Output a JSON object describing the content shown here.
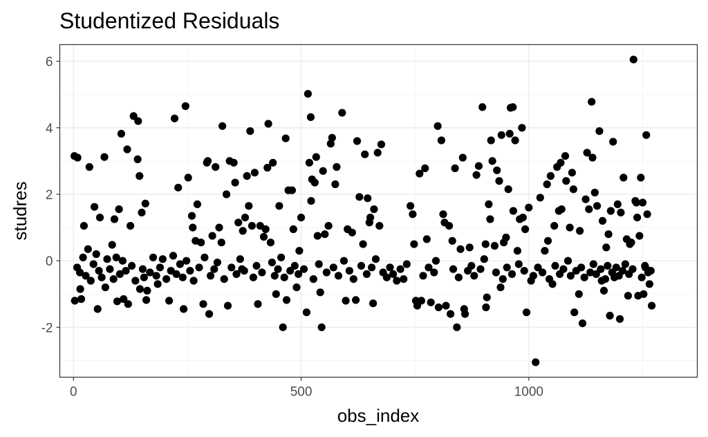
{
  "chart_data": {
    "type": "scatter",
    "title": "Studentized Residuals",
    "xlabel": "obs_index",
    "ylabel": "studres",
    "xlim": [
      -30,
      1370
    ],
    "ylim": [
      -3.5,
      6.5
    ],
    "xticks": [
      0,
      500,
      1000
    ],
    "xtick_labels": [
      "0",
      "500",
      "1000"
    ],
    "yticks": [
      -2,
      0,
      2,
      4,
      6
    ],
    "ytick_labels": [
      "-2",
      "0",
      "2",
      "4",
      "6"
    ],
    "grid": true,
    "point_color": "#000000",
    "background": "#ffffff",
    "points": [
      [
        2,
        3.15
      ],
      [
        9,
        3.1
      ],
      [
        3,
        -1.2
      ],
      [
        17,
        -1.15
      ],
      [
        15,
        -0.85
      ],
      [
        23,
        1.05
      ],
      [
        35,
        2.82
      ],
      [
        46,
        1.62
      ],
      [
        53,
        -1.45
      ],
      [
        58,
        1.3
      ],
      [
        68,
        3.12
      ],
      [
        70,
        -0.8
      ],
      [
        85,
        0.48
      ],
      [
        90,
        1.25
      ],
      [
        96,
        -1.22
      ],
      [
        100,
        1.55
      ],
      [
        105,
        3.82
      ],
      [
        110,
        -1.15
      ],
      [
        118,
        3.35
      ],
      [
        120,
        -1.3
      ],
      [
        125,
        1.05
      ],
      [
        132,
        4.35
      ],
      [
        142,
        4.2
      ],
      [
        141,
        3.05
      ],
      [
        145,
        2.55
      ],
      [
        146,
        -0.85
      ],
      [
        150,
        1.45
      ],
      [
        155,
        -0.5
      ],
      [
        158,
        1.72
      ],
      [
        160,
        -1.18
      ],
      [
        162,
        -0.9
      ],
      [
        185,
        -0.7
      ],
      [
        210,
        -1.2
      ],
      [
        222,
        4.28
      ],
      [
        230,
        2.2
      ],
      [
        242,
        -1.45
      ],
      [
        246,
        4.65
      ],
      [
        252,
        2.5
      ],
      [
        260,
        1.35
      ],
      [
        262,
        1.0
      ],
      [
        268,
        0.6
      ],
      [
        272,
        1.7
      ],
      [
        280,
        0.55
      ],
      [
        285,
        -1.3
      ],
      [
        293,
        2.95
      ],
      [
        295,
        3.0
      ],
      [
        298,
        -1.6
      ],
      [
        305,
        0.75
      ],
      [
        312,
        2.82
      ],
      [
        320,
        1.0
      ],
      [
        325,
        0.55
      ],
      [
        327,
        4.05
      ],
      [
        336,
        2.0
      ],
      [
        339,
        -1.35
      ],
      [
        343,
        3.0
      ],
      [
        352,
        2.95
      ],
      [
        355,
        2.35
      ],
      [
        362,
        1.15
      ],
      [
        370,
        -0.25
      ],
      [
        372,
        0.9
      ],
      [
        377,
        1.3
      ],
      [
        381,
        2.55
      ],
      [
        385,
        1.65
      ],
      [
        388,
        3.9
      ],
      [
        392,
        1.05
      ],
      [
        398,
        2.65
      ],
      [
        405,
        -1.3
      ],
      [
        410,
        1.05
      ],
      [
        418,
        0.72
      ],
      [
        422,
        0.95
      ],
      [
        426,
        2.8
      ],
      [
        428,
        4.12
      ],
      [
        433,
        0.55
      ],
      [
        438,
        2.95
      ],
      [
        445,
        -1.0
      ],
      [
        452,
        1.65
      ],
      [
        460,
        -2.0
      ],
      [
        466,
        3.68
      ],
      [
        468,
        -1.18
      ],
      [
        472,
        2.12
      ],
      [
        480,
        2.12
      ],
      [
        483,
        0.95
      ],
      [
        490,
        -0.8
      ],
      [
        496,
        0.3
      ],
      [
        500,
        1.3
      ],
      [
        512,
        -1.55
      ],
      [
        515,
        5.02
      ],
      [
        518,
        2.95
      ],
      [
        521,
        4.32
      ],
      [
        524,
        2.45
      ],
      [
        522,
        1.8
      ],
      [
        530,
        2.35
      ],
      [
        533,
        3.12
      ],
      [
        536,
        0.75
      ],
      [
        542,
        -0.95
      ],
      [
        545,
        -2.0
      ],
      [
        548,
        2.7
      ],
      [
        552,
        0.8
      ],
      [
        560,
        1.05
      ],
      [
        565,
        3.52
      ],
      [
        568,
        3.7
      ],
      [
        575,
        2.3
      ],
      [
        578,
        2.82
      ],
      [
        590,
        4.45
      ],
      [
        598,
        -1.2
      ],
      [
        602,
        0.95
      ],
      [
        612,
        0.85
      ],
      [
        620,
        -1.18
      ],
      [
        623,
        3.6
      ],
      [
        628,
        1.92
      ],
      [
        636,
        0.5
      ],
      [
        640,
        3.2
      ],
      [
        646,
        1.88
      ],
      [
        650,
        1.15
      ],
      [
        652,
        1.3
      ],
      [
        658,
        -1.28
      ],
      [
        660,
        1.55
      ],
      [
        668,
        3.25
      ],
      [
        672,
        1.05
      ],
      [
        676,
        3.5
      ],
      [
        710,
        -0.6
      ],
      [
        740,
        1.65
      ],
      [
        745,
        1.4
      ],
      [
        748,
        0.5
      ],
      [
        752,
        -1.2
      ],
      [
        755,
        -1.35
      ],
      [
        760,
        2.62
      ],
      [
        764,
        -1.2
      ],
      [
        772,
        2.78
      ],
      [
        776,
        0.65
      ],
      [
        785,
        -1.25
      ],
      [
        800,
        4.05
      ],
      [
        802,
        -1.4
      ],
      [
        808,
        3.62
      ],
      [
        812,
        1.4
      ],
      [
        815,
        1.15
      ],
      [
        818,
        -1.35
      ],
      [
        825,
        1.05
      ],
      [
        828,
        -1.6
      ],
      [
        832,
        0.6
      ],
      [
        838,
        2.78
      ],
      [
        842,
        -2.0
      ],
      [
        850,
        0.35
      ],
      [
        855,
        3.1
      ],
      [
        858,
        -1.45
      ],
      [
        860,
        -1.6
      ],
      [
        870,
        0.4
      ],
      [
        885,
        2.58
      ],
      [
        890,
        2.85
      ],
      [
        898,
        4.62
      ],
      [
        905,
        0.5
      ],
      [
        906,
        -1.4
      ],
      [
        908,
        -1.1
      ],
      [
        912,
        1.7
      ],
      [
        915,
        1.25
      ],
      [
        917,
        3.62
      ],
      [
        920,
        3.0
      ],
      [
        925,
        0.45
      ],
      [
        930,
        2.72
      ],
      [
        935,
        2.4
      ],
      [
        938,
        -0.8
      ],
      [
        940,
        3.78
      ],
      [
        945,
        0.55
      ],
      [
        950,
        0.7
      ],
      [
        955,
        2.15
      ],
      [
        958,
        3.82
      ],
      [
        960,
        4.6
      ],
      [
        965,
        4.62
      ],
      [
        966,
        1.5
      ],
      [
        970,
        3.62
      ],
      [
        975,
        0.3
      ],
      [
        980,
        1.25
      ],
      [
        985,
        4.0
      ],
      [
        987,
        1.3
      ],
      [
        992,
        0.95
      ],
      [
        995,
        -1.55
      ],
      [
        1000,
        1.6
      ],
      [
        1005,
        -0.6
      ],
      [
        1015,
        -3.05
      ],
      [
        1025,
        1.9
      ],
      [
        1035,
        0.3
      ],
      [
        1040,
        2.3
      ],
      [
        1042,
        0.6
      ],
      [
        1048,
        2.55
      ],
      [
        1052,
        -0.7
      ],
      [
        1056,
        1.05
      ],
      [
        1062,
        2.82
      ],
      [
        1066,
        1.5
      ],
      [
        1070,
        2.95
      ],
      [
        1072,
        1.55
      ],
      [
        1080,
        3.15
      ],
      [
        1082,
        2.4
      ],
      [
        1090,
        1.0
      ],
      [
        1095,
        2.65
      ],
      [
        1098,
        2.15
      ],
      [
        1100,
        -1.55
      ],
      [
        1110,
        -1.0
      ],
      [
        1112,
        0.9
      ],
      [
        1118,
        -1.88
      ],
      [
        1125,
        1.85
      ],
      [
        1128,
        3.25
      ],
      [
        1132,
        1.55
      ],
      [
        1138,
        4.78
      ],
      [
        1140,
        3.1
      ],
      [
        1145,
        2.05
      ],
      [
        1150,
        1.65
      ],
      [
        1155,
        3.9
      ],
      [
        1160,
        -0.6
      ],
      [
        1162,
        1.2
      ],
      [
        1165,
        -0.9
      ],
      [
        1170,
        0.4
      ],
      [
        1175,
        0.8
      ],
      [
        1178,
        -1.65
      ],
      [
        1180,
        1.5
      ],
      [
        1185,
        3.58
      ],
      [
        1188,
        -0.5
      ],
      [
        1195,
        1.7
      ],
      [
        1200,
        -1.75
      ],
      [
        1202,
        1.45
      ],
      [
        1208,
        2.5
      ],
      [
        1215,
        0.65
      ],
      [
        1218,
        -1.05
      ],
      [
        1222,
        0.5
      ],
      [
        1225,
        0.55
      ],
      [
        1230,
        6.05
      ],
      [
        1234,
        1.8
      ],
      [
        1236,
        1.75
      ],
      [
        1238,
        1.3
      ],
      [
        1240,
        -1.05
      ],
      [
        1243,
        0.75
      ],
      [
        1246,
        2.5
      ],
      [
        1250,
        1.75
      ],
      [
        1252,
        -1.0
      ],
      [
        1258,
        3.78
      ],
      [
        1260,
        1.4
      ],
      [
        1265,
        -0.7
      ],
      [
        1270,
        -1.35
      ],
      [
        1268,
        -0.3
      ],
      [
        1262,
        -0.35
      ],
      [
        1255,
        -0.15
      ],
      [
        8,
        -0.2
      ],
      [
        14,
        -0.35
      ],
      [
        21,
        0.1
      ],
      [
        27,
        -0.45
      ],
      [
        32,
        0.35
      ],
      [
        38,
        -0.6
      ],
      [
        44,
        -0.1
      ],
      [
        50,
        0.2
      ],
      [
        56,
        -0.3
      ],
      [
        62,
        -0.5
      ],
      [
        74,
        0.05
      ],
      [
        80,
        -0.25
      ],
      [
        88,
        -0.55
      ],
      [
        94,
        0.1
      ],
      [
        102,
        -0.4
      ],
      [
        108,
        0.0
      ],
      [
        115,
        -0.3
      ],
      [
        128,
        -0.15
      ],
      [
        136,
        -0.6
      ],
      [
        152,
        -0.25
      ],
      [
        168,
        -0.35
      ],
      [
        175,
        0.1
      ],
      [
        182,
        -0.45
      ],
      [
        190,
        -0.2
      ],
      [
        196,
        0.05
      ],
      [
        204,
        -0.55
      ],
      [
        214,
        -0.3
      ],
      [
        219,
        0.15
      ],
      [
        226,
        -0.4
      ],
      [
        234,
        -0.1
      ],
      [
        240,
        -0.5
      ],
      [
        248,
        0.0
      ],
      [
        256,
        -0.3
      ],
      [
        264,
        -0.6
      ],
      [
        276,
        -0.2
      ],
      [
        288,
        0.1
      ],
      [
        301,
        -0.45
      ],
      [
        309,
        -0.25
      ],
      [
        316,
        -0.05
      ],
      [
        331,
        -0.55
      ],
      [
        347,
        -0.2
      ],
      [
        358,
        -0.4
      ],
      [
        366,
        0.05
      ],
      [
        375,
        -0.3
      ],
      [
        395,
        -0.5
      ],
      [
        402,
        -0.15
      ],
      [
        414,
        -0.35
      ],
      [
        436,
        -0.05
      ],
      [
        442,
        -0.45
      ],
      [
        449,
        -0.25
      ],
      [
        456,
        0.1
      ],
      [
        463,
        -0.5
      ],
      [
        476,
        -0.3
      ],
      [
        486,
        -0.15
      ],
      [
        494,
        -0.4
      ],
      [
        506,
        -0.25
      ],
      [
        527,
        -0.55
      ],
      [
        539,
        -0.1
      ],
      [
        556,
        -0.35
      ],
      [
        571,
        -0.2
      ],
      [
        582,
        -0.45
      ],
      [
        594,
        0.0
      ],
      [
        606,
        -0.3
      ],
      [
        615,
        -0.55
      ],
      [
        632,
        -0.15
      ],
      [
        644,
        -0.4
      ],
      [
        655,
        -0.2
      ],
      [
        664,
        0.05
      ],
      [
        680,
        -0.35
      ],
      [
        688,
        -0.5
      ],
      [
        695,
        -0.2
      ],
      [
        702,
        -0.4
      ],
      [
        718,
        -0.25
      ],
      [
        725,
        -0.55
      ],
      [
        732,
        -0.1
      ],
      [
        768,
        -0.45
      ],
      [
        780,
        -0.2
      ],
      [
        792,
        -0.35
      ],
      [
        796,
        0.0
      ],
      [
        834,
        -0.25
      ],
      [
        846,
        -0.5
      ],
      [
        866,
        -0.3
      ],
      [
        874,
        -0.15
      ],
      [
        880,
        -0.45
      ],
      [
        894,
        -0.25
      ],
      [
        902,
        0.05
      ],
      [
        928,
        -0.35
      ],
      [
        943,
        -0.55
      ],
      [
        952,
        -0.2
      ],
      [
        963,
        -0.4
      ],
      [
        978,
        -0.1
      ],
      [
        990,
        -0.3
      ],
      [
        1010,
        -0.45
      ],
      [
        1020,
        -0.2
      ],
      [
        1030,
        -0.35
      ],
      [
        1045,
        -0.55
      ],
      [
        1058,
        -0.15
      ],
      [
        1068,
        -0.4
      ],
      [
        1076,
        -0.25
      ],
      [
        1086,
        0.0
      ],
      [
        1092,
        -0.45
      ],
      [
        1104,
        -0.3
      ],
      [
        1115,
        -0.2
      ],
      [
        1122,
        -0.5
      ],
      [
        1135,
        -0.35
      ],
      [
        1142,
        -0.1
      ],
      [
        1148,
        -0.4
      ],
      [
        1158,
        -0.25
      ],
      [
        1168,
        -0.55
      ],
      [
        1173,
        -0.15
      ],
      [
        1183,
        -0.35
      ],
      [
        1192,
        -0.2
      ],
      [
        1198,
        -0.45
      ],
      [
        1206,
        -0.3
      ],
      [
        1212,
        -0.1
      ],
      [
        1220,
        -0.4
      ],
      [
        1228,
        -0.25
      ],
      [
        1248,
        -0.5
      ],
      [
        1256,
        -0.2
      ],
      [
        1263,
        -0.3
      ]
    ]
  }
}
